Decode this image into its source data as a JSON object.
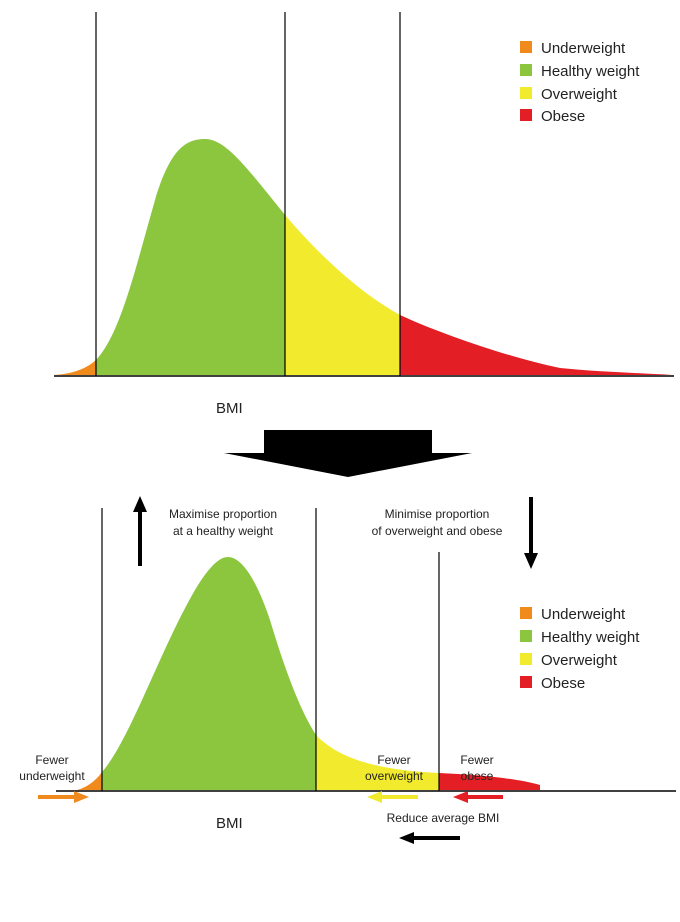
{
  "colors": {
    "underweight": "#f18a1c",
    "healthy": "#8cc63f",
    "overweight": "#f2ea2c",
    "obese": "#e31e24",
    "line": "#000000",
    "shift_arrow": "#000000"
  },
  "top_panel": {
    "axis_label": "BMI",
    "legend": [
      {
        "label": "Underweight",
        "color": "#f18a1c"
      },
      {
        "label": "Healthy weight",
        "color": "#8cc63f"
      },
      {
        "label": "Overweight",
        "color": "#f2ea2c"
      },
      {
        "label": "Obese",
        "color": "#e31e24"
      }
    ]
  },
  "bottom_panel": {
    "axis_label": "BMI",
    "legend": [
      {
        "label": "Underweight",
        "color": "#f18a1c"
      },
      {
        "label": "Healthy weight",
        "color": "#8cc63f"
      },
      {
        "label": "Overweight",
        "color": "#f2ea2c"
      },
      {
        "label": "Obese",
        "color": "#e31e24"
      }
    ],
    "annotations": {
      "maximise": [
        "Maximise proportion",
        "at a healthy weight"
      ],
      "minimise": [
        "Minimise proportion",
        "of overweight and obese"
      ],
      "fewer_underweight": [
        "Fewer",
        "underweight"
      ],
      "fewer_overweight": [
        "Fewer",
        "overweight"
      ],
      "fewer_obese": [
        "Fewer",
        "obese"
      ],
      "reduce_average": "Reduce average BMI"
    }
  }
}
